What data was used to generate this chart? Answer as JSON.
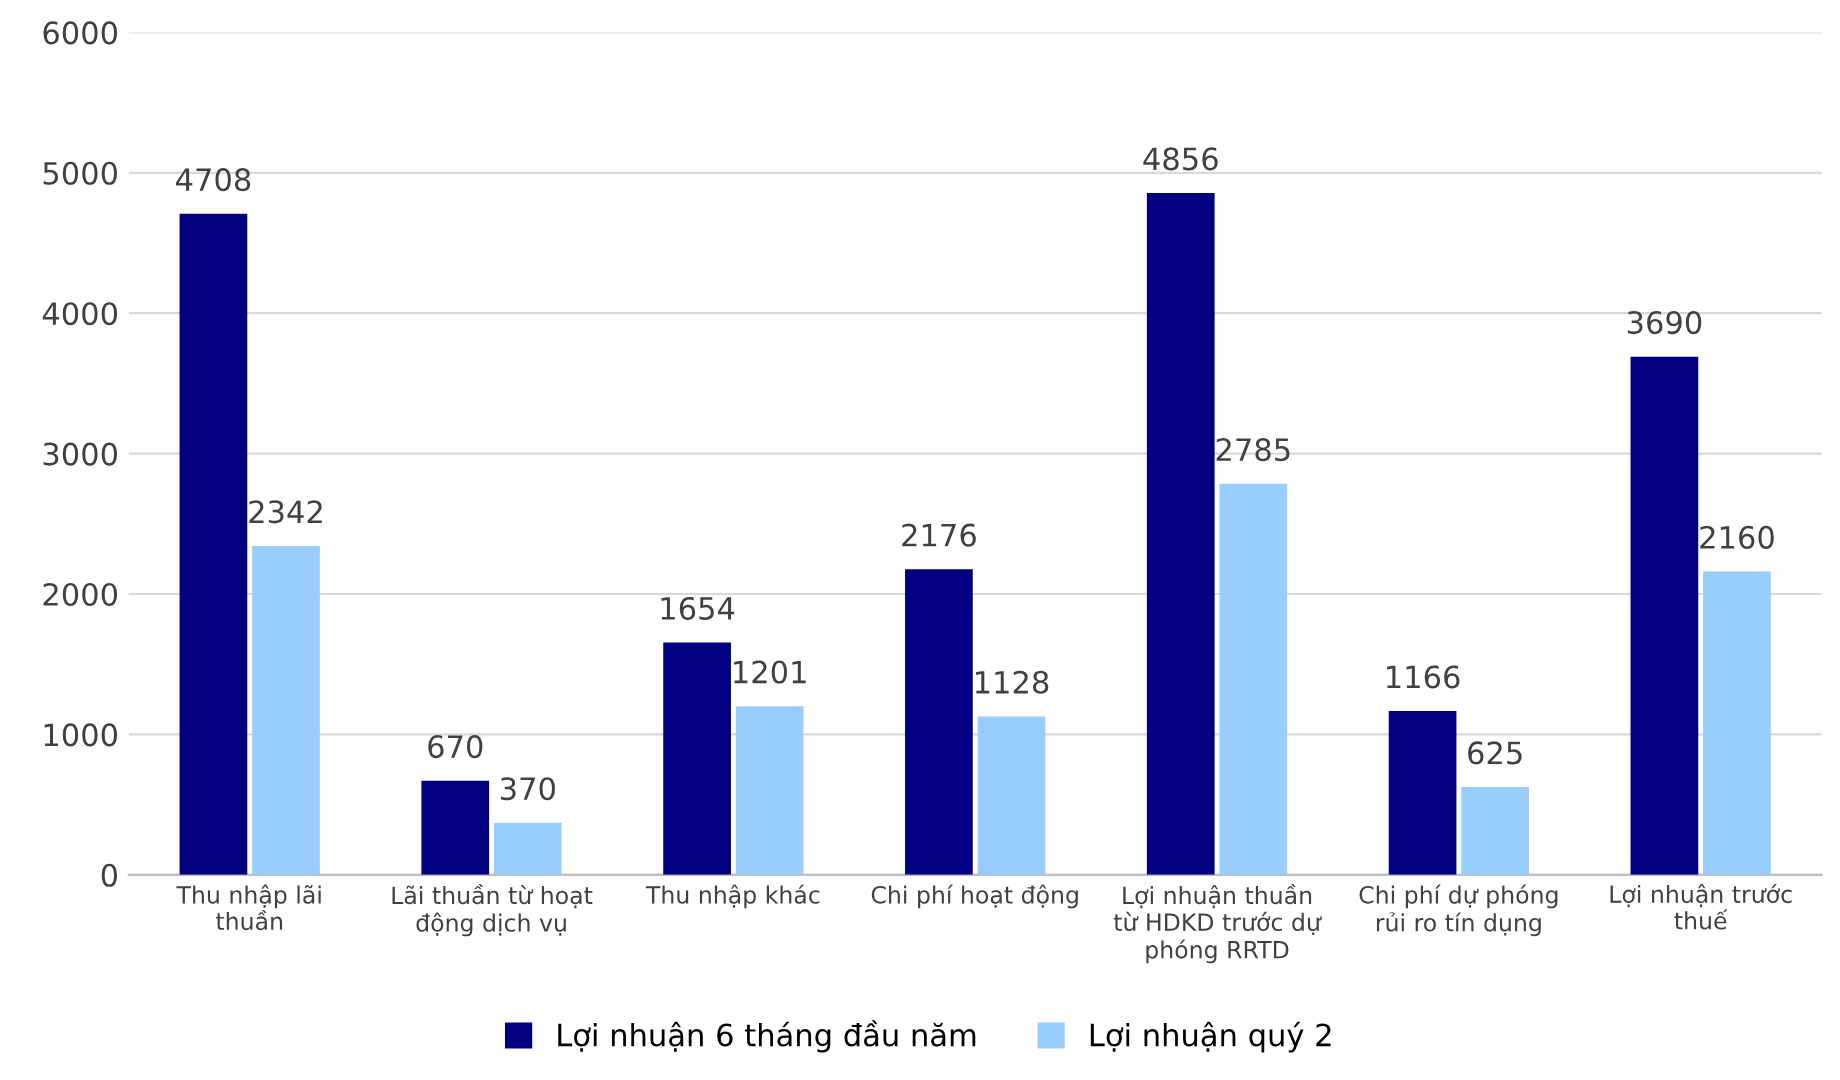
{
  "chart_data": {
    "type": "bar",
    "categories": [
      "Thu nhập lãi thuần",
      "Lãi thuần từ hoạt động dịch vụ",
      "Thu nhập khác",
      "Chi phí hoạt động",
      "Lợi nhuận thuần từ HDKD trước dự phóng RRTD",
      "Chi phí dự phóng rủi ro tín dụng",
      "Lợi nhuận trước thuế"
    ],
    "series": [
      {
        "name": "Lợi nhuận 6 tháng đầu năm",
        "color": "#000080",
        "values": [
          4708,
          670,
          1654,
          2176,
          4856,
          1166,
          3690
        ]
      },
      {
        "name": "Lợi nhuận quý 2",
        "color": "#99ccff",
        "values": [
          2342,
          370,
          1201,
          1128,
          2785,
          625,
          2160
        ]
      }
    ],
    "ylim": [
      0,
      6000
    ],
    "yticks": [
      0,
      1000,
      2000,
      3000,
      4000,
      5000,
      6000
    ],
    "grid": "y",
    "legend": "bottom",
    "data_labels": true
  }
}
